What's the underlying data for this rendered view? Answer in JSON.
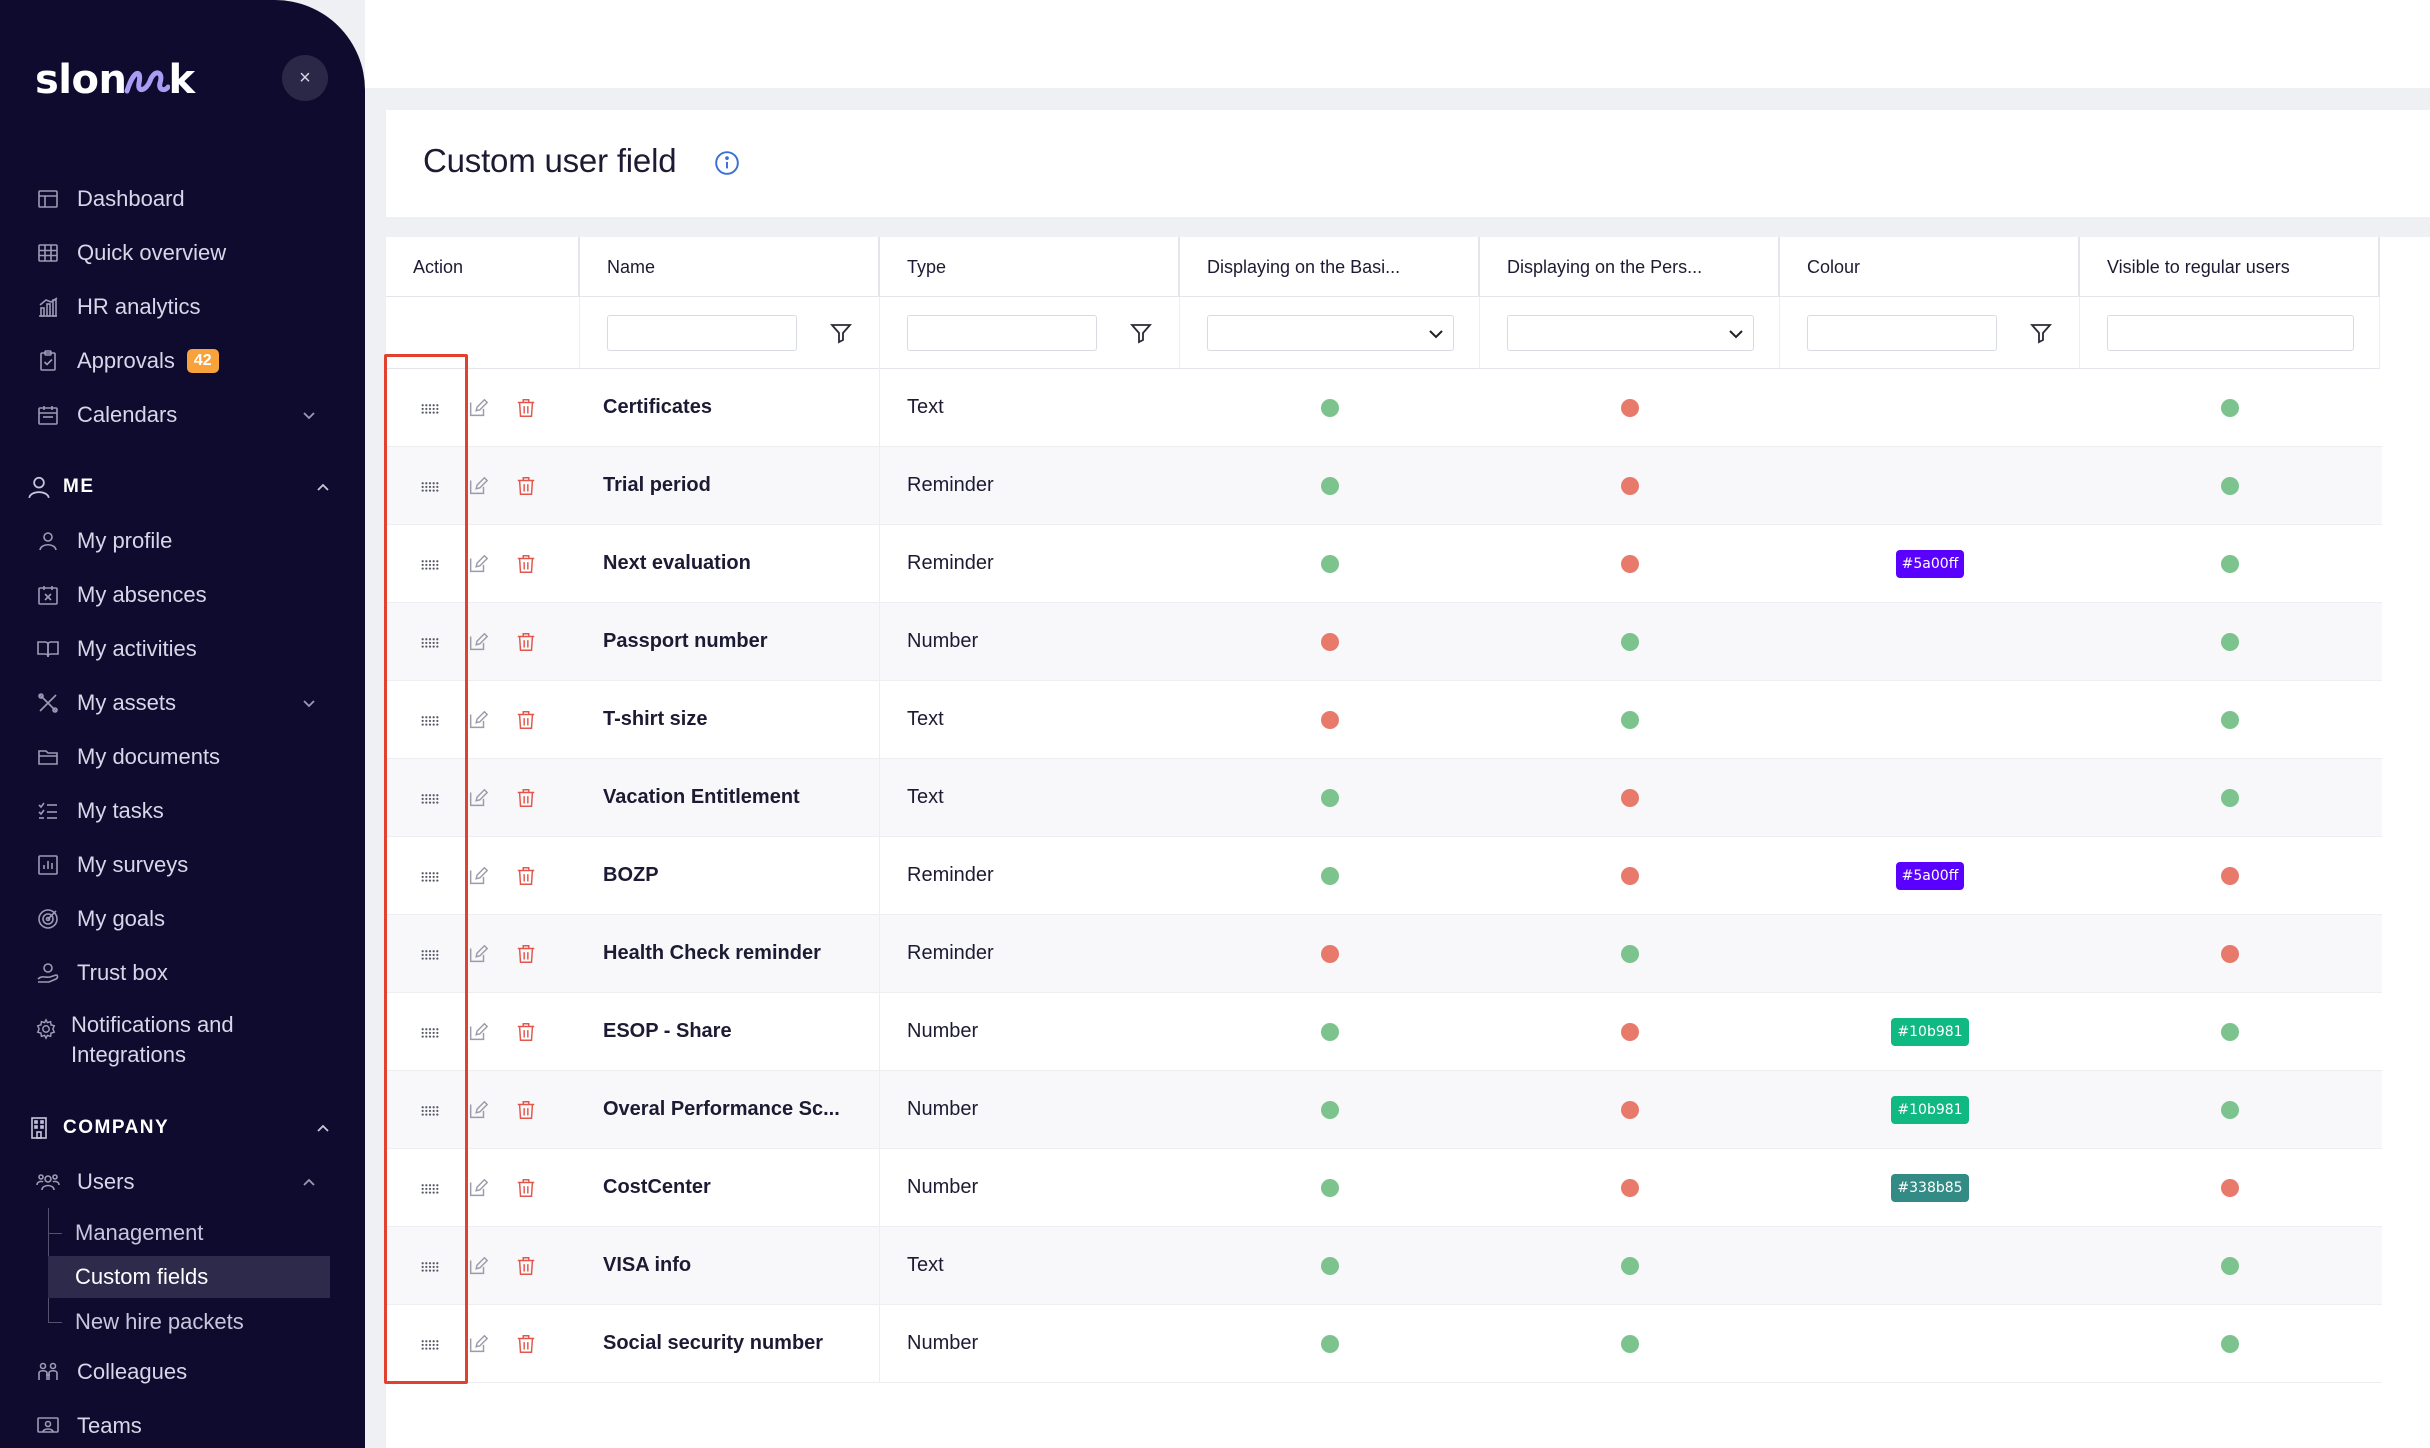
{
  "brand": {
    "logo_pre": "slon",
    "logo_post": "k"
  },
  "sidebar": {
    "close_label": "×",
    "nav": [
      {
        "label": "Dashboard",
        "icon": "dashboard-icon"
      },
      {
        "label": "Quick overview",
        "icon": "grid-icon"
      },
      {
        "label": "HR analytics",
        "icon": "analytics-icon"
      },
      {
        "label": "Approvals",
        "icon": "approvals-icon",
        "badge": "42"
      },
      {
        "label": "Calendars",
        "icon": "calendar-icon"
      }
    ],
    "me_section": "ME",
    "me_items": [
      {
        "label": "My profile",
        "icon": "user-icon"
      },
      {
        "label": "My absences",
        "icon": "absence-icon"
      },
      {
        "label": "My activities",
        "icon": "book-icon"
      },
      {
        "label": "My assets",
        "icon": "assets-icon"
      },
      {
        "label": "My documents",
        "icon": "folder-icon"
      },
      {
        "label": "My tasks",
        "icon": "tasks-icon"
      },
      {
        "label": "My surveys",
        "icon": "survey-icon"
      },
      {
        "label": "My goals",
        "icon": "goal-icon"
      },
      {
        "label": "Trust box",
        "icon": "trust-box-icon"
      },
      {
        "label": "Notifications and",
        "label2": "Integrations",
        "icon": "gear-icon"
      }
    ],
    "company_section": "COMPANY",
    "users_label": "Users",
    "users_sub": [
      {
        "label": "Management"
      },
      {
        "label": "Custom fields"
      },
      {
        "label": "New hire packets"
      }
    ],
    "after_items": [
      {
        "label": "Colleagues",
        "icon": "colleagues-icon"
      },
      {
        "label": "Teams",
        "icon": "teams-icon"
      }
    ]
  },
  "page": {
    "title": "Custom user field"
  },
  "table": {
    "headers": [
      "Action",
      "Name",
      "Type",
      "Displaying on the Basi...",
      "Displaying on the Pers...",
      "Colour",
      "Visible to regular users"
    ],
    "rows": [
      {
        "name": "Certificates",
        "type": "Text",
        "basic": "green",
        "personal": "red",
        "colour": "",
        "visible": "green"
      },
      {
        "name": "Trial period",
        "type": "Reminder",
        "basic": "green",
        "personal": "red",
        "colour": "",
        "visible": "green"
      },
      {
        "name": "Next evaluation",
        "type": "Reminder",
        "basic": "green",
        "personal": "red",
        "colour": "#5a00ff",
        "visible": "green"
      },
      {
        "name": "Passport number",
        "type": "Number",
        "basic": "red",
        "personal": "green",
        "colour": "",
        "visible": "green"
      },
      {
        "name": "T-shirt size",
        "type": "Text",
        "basic": "red",
        "personal": "green",
        "colour": "",
        "visible": "green"
      },
      {
        "name": "Vacation Entitlement",
        "type": "Text",
        "basic": "green",
        "personal": "red",
        "colour": "",
        "visible": "green"
      },
      {
        "name": "BOZP",
        "type": "Reminder",
        "basic": "green",
        "personal": "red",
        "colour": "#5a00ff",
        "visible": "red"
      },
      {
        "name": "Health Check reminder",
        "type": "Reminder",
        "basic": "red",
        "personal": "green",
        "colour": "",
        "visible": "red"
      },
      {
        "name": "ESOP - Share",
        "type": "Number",
        "basic": "green",
        "personal": "red",
        "colour": "#10b981",
        "visible": "green"
      },
      {
        "name": "Overal Performance Sc...",
        "type": "Number",
        "basic": "green",
        "personal": "red",
        "colour": "#10b981",
        "visible": "green"
      },
      {
        "name": "CostCenter",
        "type": "Number",
        "basic": "green",
        "personal": "red",
        "colour": "#338b85",
        "visible": "red"
      },
      {
        "name": "VISA info",
        "type": "Text",
        "basic": "green",
        "personal": "green",
        "colour": "",
        "visible": "green"
      },
      {
        "name": "Social security number",
        "type": "Number",
        "basic": "green",
        "personal": "green",
        "colour": "",
        "visible": "green"
      }
    ]
  },
  "colors": {
    "sidebar_bg": "#0f0b2e",
    "badge": "#f7a23b",
    "dot_green": "#7cc38e",
    "dot_red": "#e87a6c",
    "highlight": "#e2412f"
  }
}
